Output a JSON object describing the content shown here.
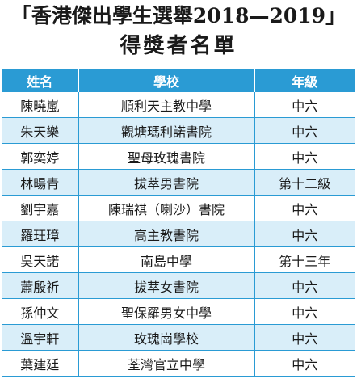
{
  "header": {
    "title": "「香港傑出學生選舉2018—2019」",
    "subtitle": "得獎者名單"
  },
  "table": {
    "columns": [
      "姓名",
      "學校",
      "年級"
    ],
    "rows": [
      {
        "name": "陳曉嵐",
        "school": "順利天主教中學",
        "grade": "中六"
      },
      {
        "name": "朱天樂",
        "school": "觀塘瑪利諾書院",
        "grade": "中六"
      },
      {
        "name": "郭奕婷",
        "school": "聖母玫瑰書院",
        "grade": "中六"
      },
      {
        "name": "林暘青",
        "school": "拔萃男書院",
        "grade": "第十二級"
      },
      {
        "name": "劉宇嘉",
        "school": "陳瑞祺（喇沙）書院",
        "grade": "中六"
      },
      {
        "name": "羅玨璋",
        "school": "高主教書院",
        "grade": "中六"
      },
      {
        "name": "吳天諾",
        "school": "南島中學",
        "grade": "第十三年"
      },
      {
        "name": "蕭殷祈",
        "school": "拔萃女書院",
        "grade": "中六"
      },
      {
        "name": "孫仲文",
        "school": "聖保羅男女中學",
        "grade": "中六"
      },
      {
        "name": "溫宇軒",
        "school": "玫瑰崗學校",
        "grade": "中六"
      },
      {
        "name": "葉建廷",
        "school": "荃灣官立中學",
        "grade": "中六"
      }
    ]
  },
  "colors": {
    "header_bg": "#2a9bd4",
    "alt_row_bg": "#d9eef9",
    "grid_line": "#2a9bd4"
  }
}
